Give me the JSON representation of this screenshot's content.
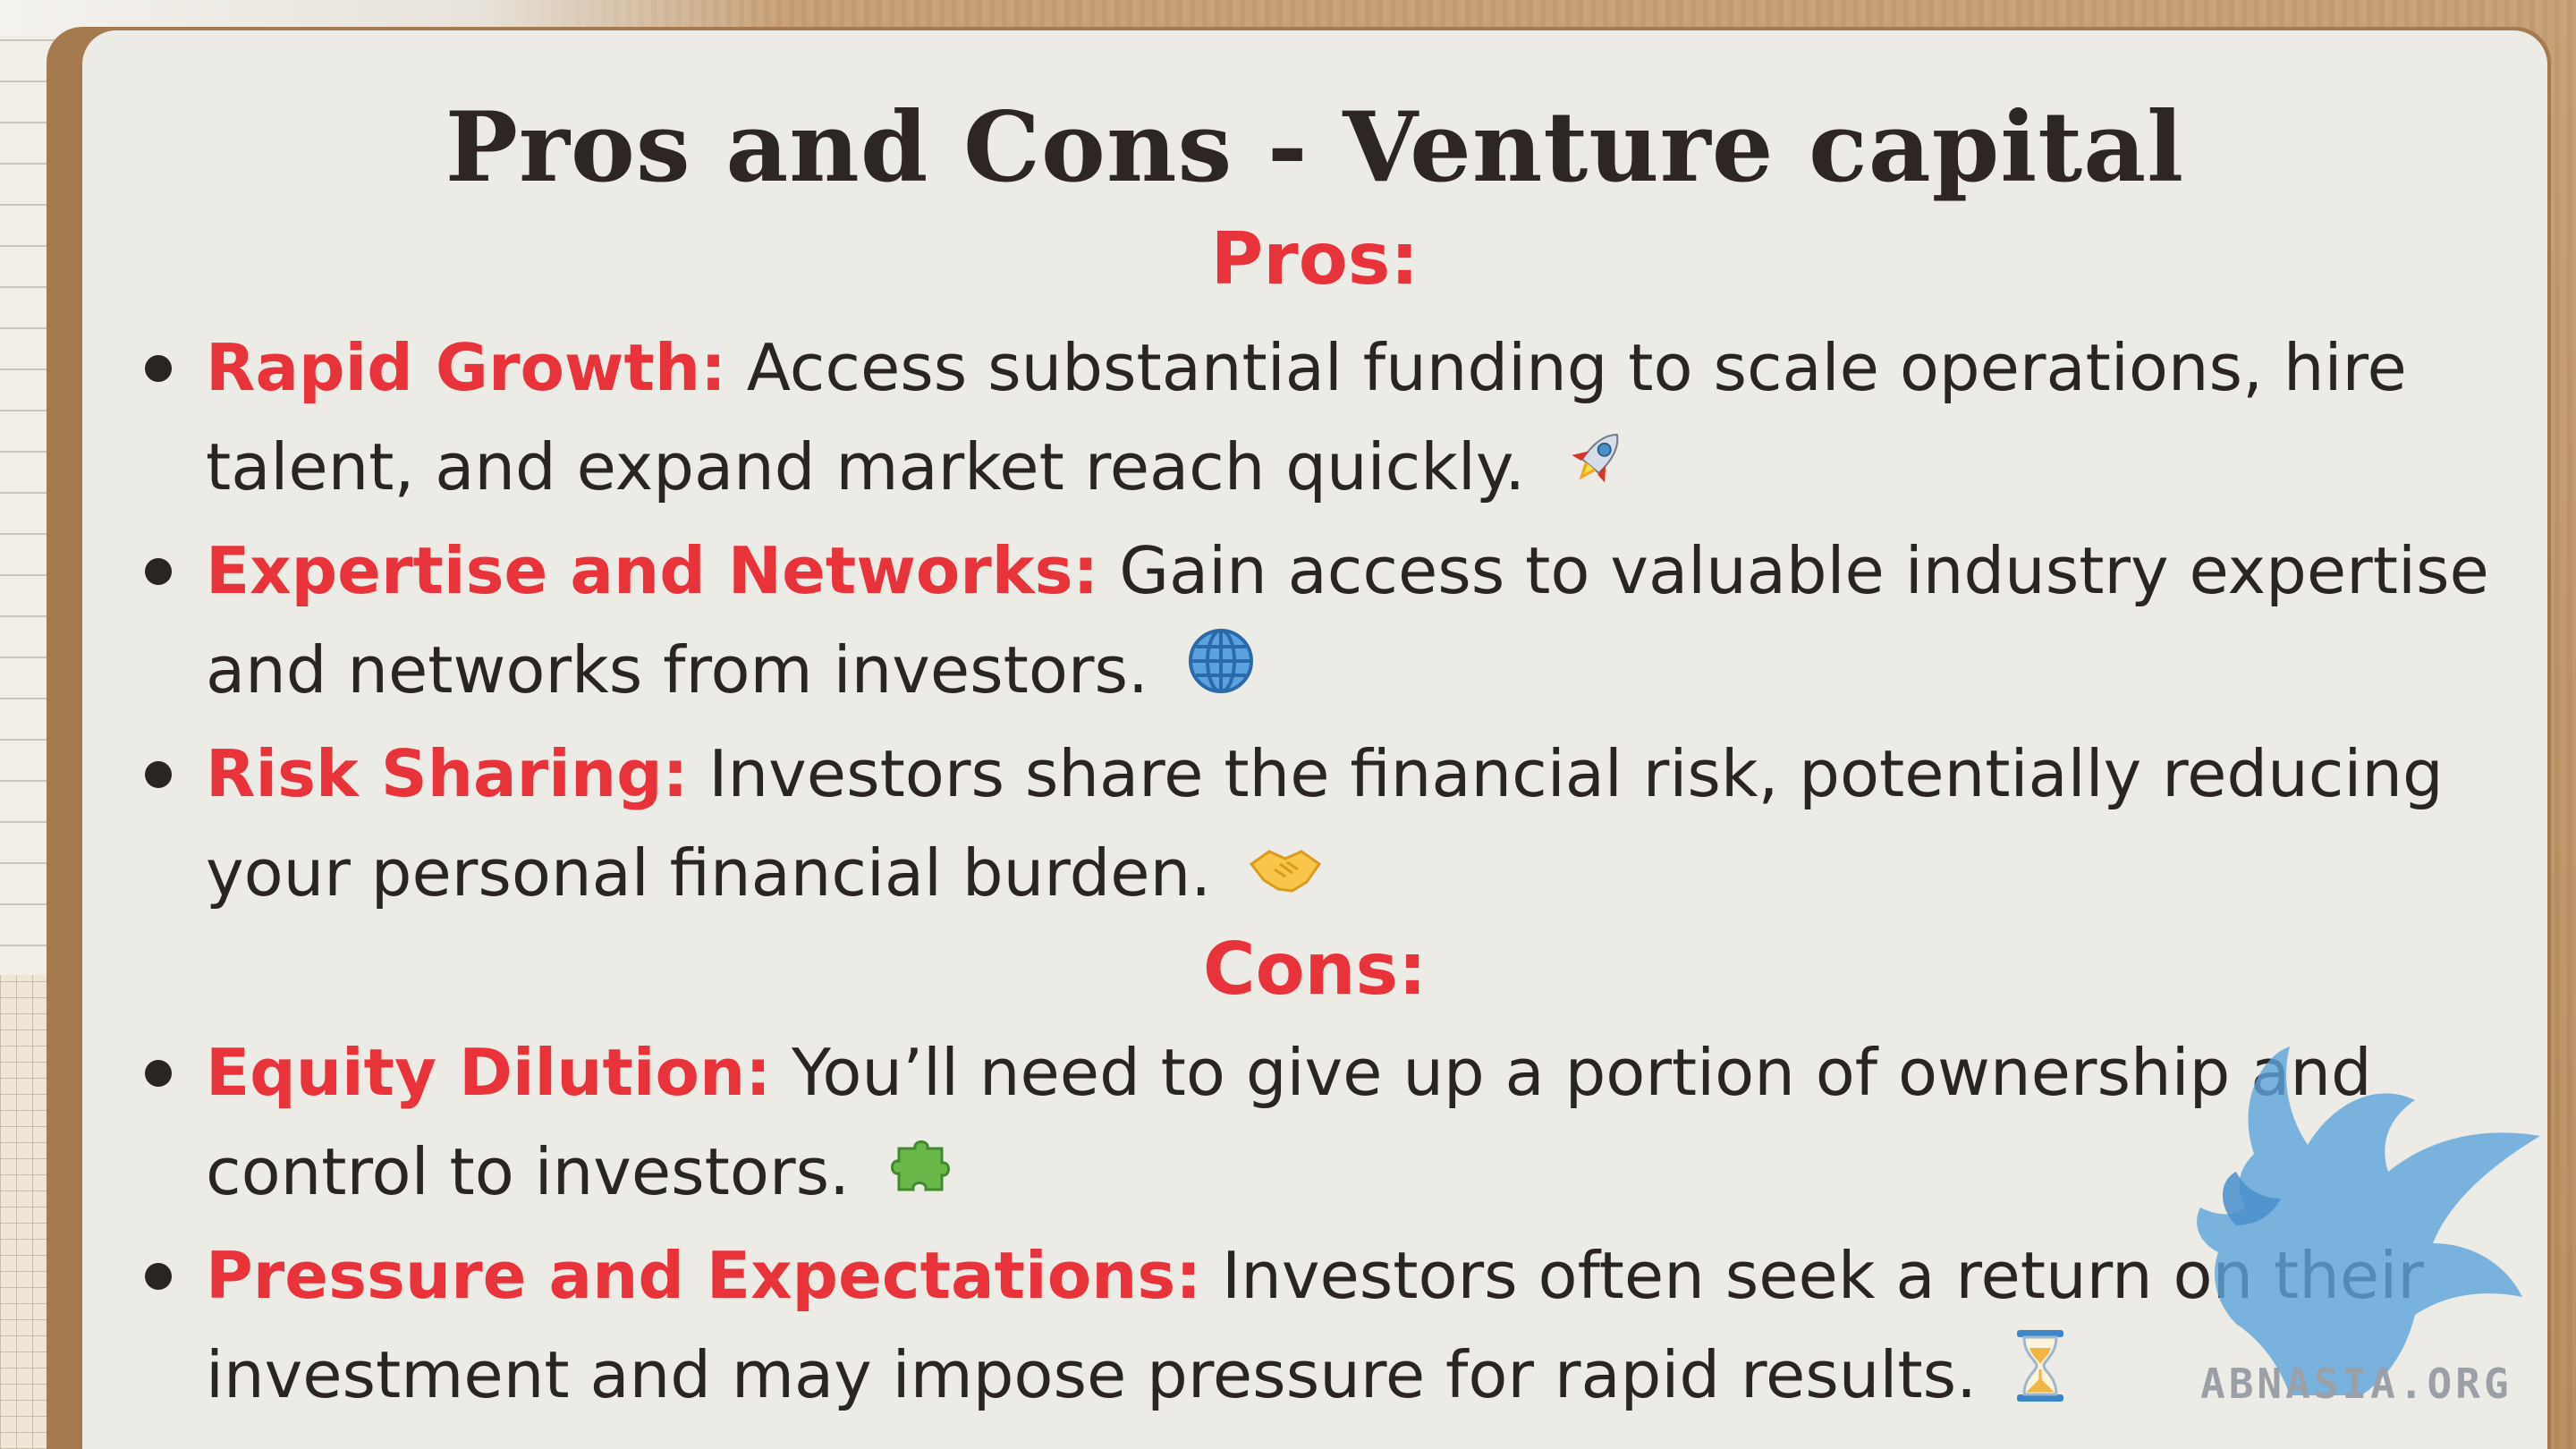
{
  "title": "Pros and Cons - Venture capital",
  "pros": {
    "heading": "Pros:",
    "items": [
      {
        "term": "Rapid Growth:",
        "text": " Access substantial funding to scale operations, hire talent, and expand market reach quickly.",
        "icon": "rocket-icon"
      },
      {
        "term": "Expertise and Networks:",
        "text": " Gain access to valuable industry expertise and networks from investors.",
        "icon": "globe-icon"
      },
      {
        "term": "Risk Sharing:",
        "text": " Investors share the financial risk, potentially reducing your personal financial burden.",
        "icon": "handshake-icon"
      }
    ]
  },
  "cons": {
    "heading": "Cons:",
    "items": [
      {
        "term": "Equity Dilution:",
        "text": " You’ll need to give up a portion of ownership and control to investors.",
        "icon": "puzzle-icon"
      },
      {
        "term": "Pressure and Expectations:",
        "text": " Investors often seek a return on their investment and may impose pressure for rapid results.",
        "icon": "hourglass-icon"
      }
    ]
  },
  "watermark": {
    "text": "ABNASIA.ORG",
    "logo": "griffin-logo-icon"
  },
  "colors": {
    "accent": "#e8333b",
    "text": "#2b2522",
    "card": "#ecebe6",
    "frame": "#a57a4f",
    "watermark": "#5ea4dc"
  }
}
